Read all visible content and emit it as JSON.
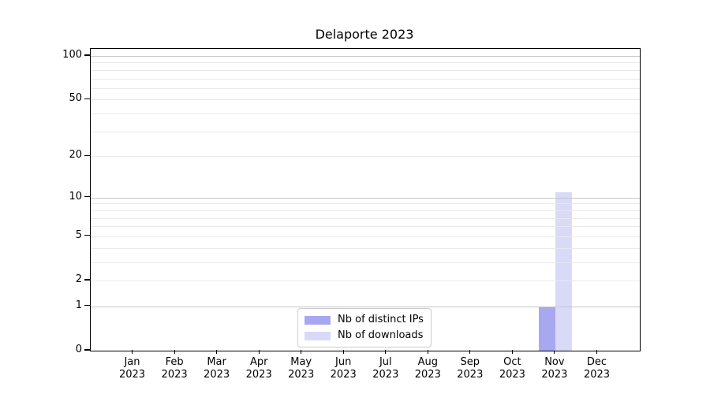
{
  "chart_data": {
    "type": "bar",
    "title": "Delaporte 2023",
    "categories": [
      {
        "month": "Jan",
        "year": "2023"
      },
      {
        "month": "Feb",
        "year": "2023"
      },
      {
        "month": "Mar",
        "year": "2023"
      },
      {
        "month": "Apr",
        "year": "2023"
      },
      {
        "month": "May",
        "year": "2023"
      },
      {
        "month": "Jun",
        "year": "2023"
      },
      {
        "month": "Jul",
        "year": "2023"
      },
      {
        "month": "Aug",
        "year": "2023"
      },
      {
        "month": "Sep",
        "year": "2023"
      },
      {
        "month": "Oct",
        "year": "2023"
      },
      {
        "month": "Nov",
        "year": "2023"
      },
      {
        "month": "Dec",
        "year": "2023"
      }
    ],
    "series": [
      {
        "name": "Nb of distinct IPs",
        "color": "#a8a8f0",
        "values": [
          0,
          0,
          0,
          0,
          0,
          0,
          0,
          0,
          0,
          0,
          1,
          0
        ]
      },
      {
        "name": "Nb of downloads",
        "color": "#d9d9f8",
        "values": [
          0,
          0,
          0,
          0,
          0,
          0,
          0,
          0,
          0,
          0,
          11,
          0
        ]
      }
    ],
    "xlabel": "",
    "ylabel": "",
    "yscale": "log1p",
    "ylim": [
      0,
      112
    ],
    "ytick_values": [
      100,
      50,
      20,
      10,
      5,
      2,
      1,
      0
    ],
    "ytick_labels": [
      "100",
      "50",
      "20",
      "10",
      "5",
      "2",
      "1",
      "0"
    ],
    "major_grid_values": [
      1,
      10,
      100
    ],
    "minor_grid_values": [
      2,
      3,
      4,
      5,
      6,
      7,
      8,
      9,
      20,
      30,
      40,
      50,
      60,
      70,
      80,
      90
    ],
    "grid": true,
    "legend_position": "lower center",
    "colors": {
      "major_grid": "#c6c6c6",
      "minor_grid": "#e9e9e9",
      "spine": "#000000",
      "text": "#000000",
      "legend_border": "#cccccc",
      "background": "#ffffff"
    }
  }
}
